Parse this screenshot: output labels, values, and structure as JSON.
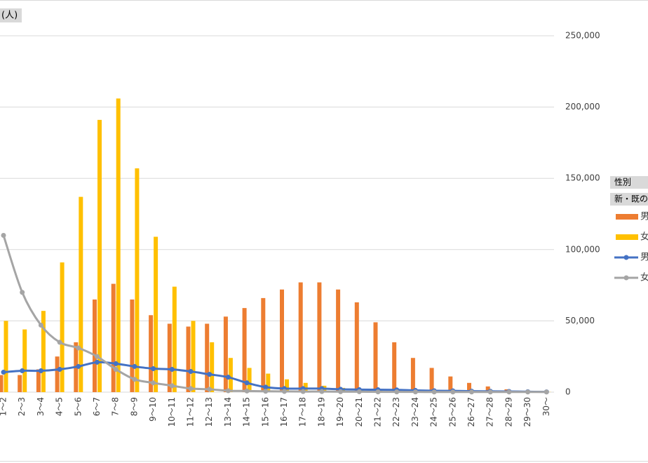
{
  "chart_data": {
    "type": "combo",
    "unit_label": "(人)",
    "legend_headers": [
      "性別",
      "新・既の"
    ],
    "categories": [
      "1～2",
      "2～3",
      "3～4",
      "4～5",
      "5～6",
      "6～7",
      "7～8",
      "8～9",
      "9～10",
      "10～11",
      "11～12",
      "12～13",
      "13～14",
      "14～15",
      "15～16",
      "16～17",
      "17～18",
      "18～19",
      "19～20",
      "20～21",
      "21～22",
      "22～23",
      "23～24",
      "24～25",
      "25～26",
      "26～27",
      "27～28",
      "28～29",
      "29～30",
      "30～"
    ],
    "series": [
      {
        "name": "男",
        "type": "bar",
        "color": "#ed7d31",
        "values": [
          12000,
          12000,
          16000,
          25000,
          35000,
          65000,
          76000,
          65000,
          54000,
          48000,
          46000,
          48000,
          53000,
          59000,
          66000,
          72000,
          77000,
          77000,
          72000,
          63000,
          49000,
          35000,
          24000,
          17000,
          11000,
          6500,
          4000,
          2000,
          1000,
          500
        ]
      },
      {
        "name": "女",
        "type": "bar",
        "color": "#ffc000",
        "values": [
          50000,
          44000,
          57000,
          91000,
          137000,
          191000,
          206000,
          157000,
          109000,
          74000,
          50000,
          35000,
          24000,
          17000,
          13000,
          9000,
          6500,
          4500,
          3000,
          2000,
          1500,
          1000,
          800,
          500,
          400,
          300,
          200,
          100,
          100,
          100
        ]
      },
      {
        "name": "男",
        "type": "line",
        "color": "#4472c4",
        "values": [
          14000,
          15000,
          15000,
          16000,
          18000,
          21000,
          20000,
          18000,
          16500,
          16000,
          14500,
          12500,
          10500,
          6500,
          3500,
          2500,
          2500,
          2500,
          2000,
          1800,
          1700,
          1600,
          1200,
          1000,
          900,
          700,
          600,
          500,
          300,
          200
        ]
      },
      {
        "name": "女",
        "type": "line",
        "color": "#a5a5a5",
        "values": [
          110000,
          70000,
          47000,
          35000,
          31000,
          25000,
          16000,
          9000,
          6500,
          4500,
          2500,
          2000,
          1000,
          800,
          600,
          500,
          400,
          400,
          300,
          300,
          200,
          200,
          200,
          100,
          100,
          100,
          100,
          100,
          100,
          100
        ]
      }
    ],
    "ylim": [
      0,
      250000
    ],
    "yticks": [
      0,
      {
        "value": 50000,
        "label": "50,000"
      },
      {
        "value": 100000,
        "label": "100,000"
      },
      {
        "value": 150000,
        "label": "150,000"
      },
      {
        "value": 200000,
        "label": "200,000"
      },
      {
        "value": 250000,
        "label": "250,000"
      }
    ],
    "grid": true
  }
}
